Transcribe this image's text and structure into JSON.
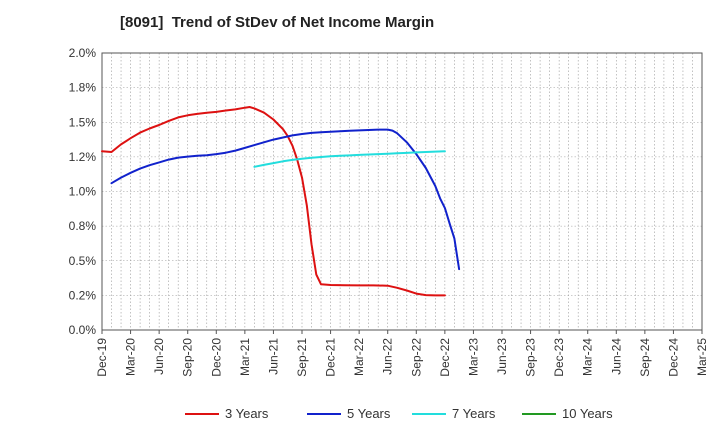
{
  "chart_data": {
    "type": "line",
    "title": "[8091]  Trend of StDev of Net Income Margin",
    "xlabel": "",
    "ylabel": "",
    "x_ticks": [
      "Dec-19",
      "Mar-20",
      "Jun-20",
      "Sep-20",
      "Dec-20",
      "Mar-21",
      "Jun-21",
      "Sep-21",
      "Dec-21",
      "Mar-22",
      "Jun-22",
      "Sep-22",
      "Dec-22",
      "Mar-23",
      "Jun-23",
      "Sep-23",
      "Dec-23",
      "Mar-24",
      "Jun-24",
      "Sep-24",
      "Dec-24",
      "Mar-25"
    ],
    "y_ticks": [
      "0.0%",
      "0.2%",
      "0.5%",
      "0.8%",
      "1.0%",
      "1.2%",
      "1.5%",
      "1.8%",
      "2.0%"
    ],
    "ylim": [
      0,
      2.0
    ],
    "grid": true,
    "legend_position": "bottom",
    "series": [
      {
        "name": "3 Years",
        "color": "#dd1111",
        "points": [
          [
            0,
            1.29
          ],
          [
            2,
            1.285
          ],
          [
            4,
            1.34
          ],
          [
            6,
            1.385
          ],
          [
            8,
            1.425
          ],
          [
            10,
            1.455
          ],
          [
            12,
            1.48
          ],
          [
            14,
            1.51
          ],
          [
            16,
            1.535
          ],
          [
            18,
            1.55
          ],
          [
            20,
            1.56
          ],
          [
            22,
            1.568
          ],
          [
            24,
            1.575
          ],
          [
            26,
            1.585
          ],
          [
            28,
            1.593
          ],
          [
            30,
            1.605
          ],
          [
            31,
            1.61
          ],
          [
            32,
            1.6
          ],
          [
            34,
            1.57
          ],
          [
            36,
            1.52
          ],
          [
            38,
            1.45
          ],
          [
            39,
            1.4
          ],
          [
            40,
            1.33
          ],
          [
            41,
            1.23
          ],
          [
            42,
            1.1
          ],
          [
            43,
            0.9
          ],
          [
            44,
            0.62
          ],
          [
            45,
            0.4
          ],
          [
            46,
            0.33
          ],
          [
            48,
            0.325
          ],
          [
            51,
            0.323
          ],
          [
            54,
            0.322
          ],
          [
            57,
            0.322
          ],
          [
            60,
            0.32
          ],
          [
            62,
            0.305
          ],
          [
            64,
            0.285
          ],
          [
            66,
            0.263
          ],
          [
            68,
            0.252
          ],
          [
            70,
            0.25
          ],
          [
            72,
            0.25
          ]
        ]
      },
      {
        "name": "5 Years",
        "color": "#1122cc",
        "points": [
          [
            2,
            1.06
          ],
          [
            4,
            1.1
          ],
          [
            6,
            1.135
          ],
          [
            8,
            1.165
          ],
          [
            10,
            1.19
          ],
          [
            12,
            1.21
          ],
          [
            14,
            1.23
          ],
          [
            16,
            1.245
          ],
          [
            18,
            1.252
          ],
          [
            20,
            1.258
          ],
          [
            22,
            1.262
          ],
          [
            24,
            1.27
          ],
          [
            26,
            1.28
          ],
          [
            28,
            1.295
          ],
          [
            30,
            1.315
          ],
          [
            32,
            1.335
          ],
          [
            34,
            1.355
          ],
          [
            36,
            1.375
          ],
          [
            38,
            1.39
          ],
          [
            40,
            1.405
          ],
          [
            42,
            1.415
          ],
          [
            44,
            1.423
          ],
          [
            46,
            1.428
          ],
          [
            48,
            1.432
          ],
          [
            50,
            1.435
          ],
          [
            52,
            1.438
          ],
          [
            54,
            1.441
          ],
          [
            56,
            1.444
          ],
          [
            58,
            1.447
          ],
          [
            60,
            1.447
          ],
          [
            61,
            1.44
          ],
          [
            62,
            1.42
          ],
          [
            64,
            1.355
          ],
          [
            66,
            1.27
          ],
          [
            68,
            1.17
          ],
          [
            70,
            1.04
          ],
          [
            71,
            0.95
          ],
          [
            72,
            0.88
          ],
          [
            73,
            0.77
          ],
          [
            74,
            0.66
          ],
          [
            75,
            0.44
          ]
        ]
      },
      {
        "name": "7 Years",
        "color": "#22dddd",
        "points": [
          [
            32,
            1.178
          ],
          [
            34,
            1.192
          ],
          [
            36,
            1.205
          ],
          [
            38,
            1.218
          ],
          [
            40,
            1.228
          ],
          [
            42,
            1.236
          ],
          [
            44,
            1.243
          ],
          [
            46,
            1.249
          ],
          [
            48,
            1.254
          ],
          [
            50,
            1.258
          ],
          [
            52,
            1.261
          ],
          [
            54,
            1.264
          ],
          [
            56,
            1.267
          ],
          [
            58,
            1.27
          ],
          [
            60,
            1.273
          ],
          [
            62,
            1.276
          ],
          [
            64,
            1.279
          ],
          [
            66,
            1.282
          ],
          [
            68,
            1.285
          ],
          [
            70,
            1.288
          ],
          [
            72,
            1.29
          ]
        ]
      },
      {
        "name": "10 Years",
        "color": "#229922",
        "points": []
      }
    ]
  }
}
